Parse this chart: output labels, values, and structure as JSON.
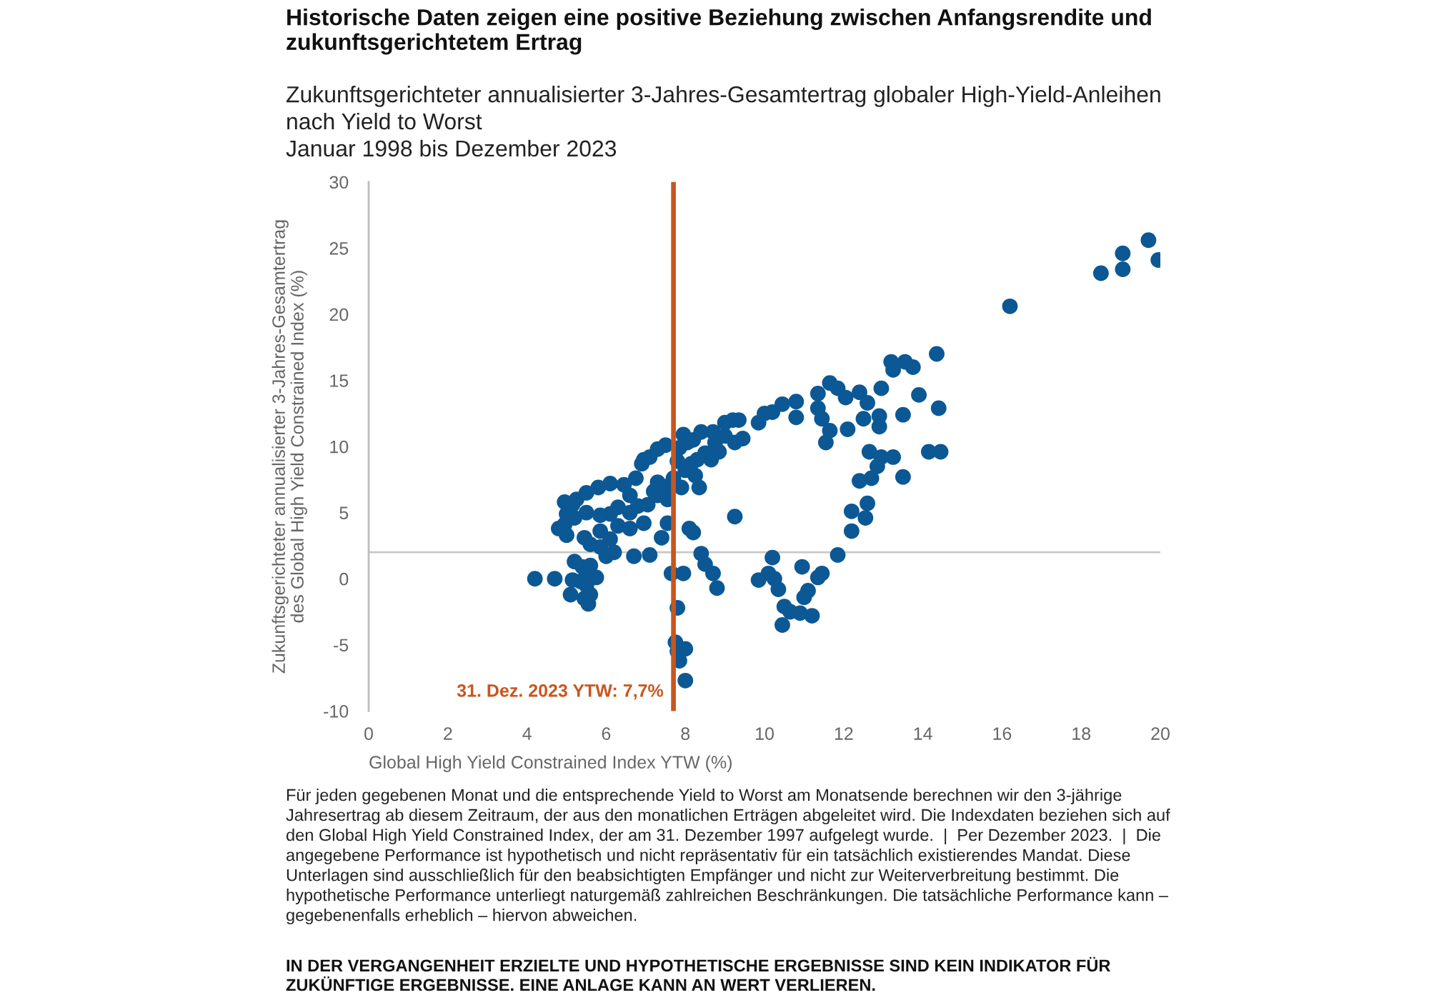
{
  "chart_data": {
    "type": "scatter",
    "title": "Historische Daten zeigen eine positive Beziehung zwischen Anfangsrendite und zukunftsgerichtetem Ertrag",
    "subtitle": "Zukunftsgerichteter annualisierter 3-Jahres-Gesamtertrag globaler High-Yield-Anleihen nach Yield to Worst\nJanuar 1998 bis Dezember 2023",
    "xlabel": "Global High Yield Constrained Index YTW (%)",
    "ylabel": "Zukunftsgerichteter annualisierter 3-Jahres-Gesamtertrag\ndes Global High Yield Constrained Index (%)",
    "x": [
      4.2,
      4.7,
      5.1,
      5.2,
      5.15,
      5.4,
      5.6,
      5.5,
      5.75,
      5.35,
      5.5,
      5.6,
      5.55,
      5.45,
      5.0,
      5.45,
      5.85,
      5.85,
      6.0,
      6.2,
      6.3,
      6.7,
      7.1,
      6.6,
      6.95,
      7.4,
      7.55,
      5.6,
      6.1,
      8.1,
      8.2,
      9.25,
      8.4,
      8.5,
      8.7,
      8.8,
      7.65,
      7.95,
      9.85,
      7.8,
      7.75,
      7.8,
      8.0,
      7.85,
      8.0,
      4.95,
      5.0,
      5.15,
      5.25,
      5.5,
      5.8,
      6.1,
      6.45,
      6.75,
      6.9,
      6.95,
      7.1,
      7.3,
      7.5,
      7.8,
      7.85,
      7.95,
      8.05,
      8.2,
      8.4,
      8.7,
      8.75,
      9.0,
      9.0,
      9.2,
      9.35,
      9.45,
      8.5,
      8.85,
      8.25,
      8.35,
      7.9,
      6.6,
      7.05,
      7.3,
      7.55,
      6.1,
      4.8,
      4.95,
      5.2,
      5.5,
      5.85,
      6.3,
      6.6,
      6.8,
      7.2,
      7.3,
      7.55,
      7.7,
      8.0,
      8.15,
      8.3,
      8.65,
      9.25,
      9.85,
      10.0,
      10.2,
      10.45,
      10.8,
      10.8,
      11.35,
      11.35,
      11.45,
      11.65,
      11.85,
      12.05,
      11.65,
      11.55,
      12.1,
      12.4,
      12.6,
      12.5,
      12.9,
      12.9,
      12.95,
      13.2,
      13.25,
      13.55,
      13.75,
      14.35,
      13.9,
      14.4,
      13.5,
      12.65,
      12.95,
      13.25,
      12.85,
      12.7,
      12.4,
      13.5,
      14.15,
      14.45,
      12.6,
      12.2,
      12.55,
      12.2,
      11.85,
      11.45,
      11.35,
      11.1,
      11.0,
      10.95,
      11.2,
      10.9,
      10.65,
      10.5,
      10.45,
      10.2,
      10.1,
      10.25,
      10.35,
      19.7,
      19.95,
      19.05,
      19.05,
      18.5,
      16.2
    ],
    "values": [
      0.0,
      0.0,
      -1.2,
      1.3,
      -0.1,
      0.9,
      1.0,
      0.3,
      0.1,
      -0.2,
      -0.5,
      -1.2,
      -1.9,
      -1.5,
      3.3,
      3.1,
      3.6,
      2.4,
      1.7,
      2.0,
      4.0,
      1.7,
      1.8,
      3.8,
      4.2,
      3.1,
      4.2,
      2.6,
      3.0,
      3.8,
      3.5,
      4.7,
      1.9,
      1.1,
      0.4,
      -0.7,
      0.4,
      0.4,
      -0.1,
      -2.2,
      -4.8,
      -5.5,
      -5.3,
      -6.2,
      -7.7,
      5.8,
      4.9,
      5.6,
      6.0,
      6.5,
      6.9,
      7.2,
      7.1,
      7.6,
      8.7,
      9.0,
      9.2,
      9.8,
      10.1,
      8.9,
      9.9,
      10.9,
      10.3,
      10.5,
      11.1,
      11.1,
      10.3,
      10.8,
      11.8,
      12.0,
      12.0,
      10.6,
      9.5,
      9.6,
      7.8,
      6.9,
      6.9,
      6.3,
      5.6,
      6.3,
      6.0,
      4.9,
      3.8,
      4.1,
      4.6,
      5.0,
      4.8,
      5.4,
      5.0,
      5.5,
      6.6,
      7.3,
      7.0,
      7.6,
      8.2,
      8.7,
      9.0,
      9.0,
      10.3,
      11.8,
      12.5,
      12.6,
      13.2,
      13.4,
      12.2,
      14.0,
      12.9,
      12.1,
      14.8,
      14.4,
      13.7,
      11.2,
      10.3,
      11.3,
      14.1,
      13.3,
      12.1,
      12.3,
      11.5,
      14.4,
      16.4,
      15.8,
      16.4,
      16.0,
      17.0,
      13.9,
      12.9,
      12.4,
      9.6,
      9.2,
      9.2,
      8.5,
      7.6,
      7.4,
      7.7,
      9.6,
      9.6,
      5.7,
      5.1,
      4.6,
      3.6,
      1.8,
      0.4,
      0.1,
      -0.9,
      -1.4,
      0.9,
      -2.8,
      -2.6,
      -2.5,
      -2.1,
      -3.5,
      1.6,
      0.4,
      0.0,
      -0.8,
      25.6,
      24.1,
      24.6,
      23.4,
      23.1,
      20.6
    ],
    "color": "#0b5895",
    "marker": "circle",
    "xlim": [
      0,
      20
    ],
    "ylim": [
      -10,
      30
    ],
    "xticks": [
      0,
      2,
      4,
      6,
      8,
      10,
      12,
      14,
      16,
      18,
      20
    ],
    "yticks": [
      -10,
      -5,
      0,
      5,
      10,
      15,
      20,
      25,
      30
    ],
    "ref_lines": [
      {
        "axis": "y",
        "value": 2,
        "color": "#c8c8c8"
      },
      {
        "axis": "x",
        "value": 7.7,
        "label": "31. Dez. 2023 YTW: 7,7%",
        "color": "#c8561e"
      }
    ],
    "annotations": [
      "Für jeden gegebenen Monat und die entsprechende Yield to Worst am Monatsende berechnen wir den 3-jährige Jahresertrag ab diesem Zeitraum, der aus den monatlichen Erträgen abgeleitet wird. Die Indexdaten beziehen sich auf den Global High Yield Constrained Index, der am 31. Dezember 1997 aufgelegt wurde.  |  Per Dezember 2023.  |  Die angegebene Performance ist hypothetisch und nicht repräsentativ für ein tatsächlich existierendes Mandat. Diese Unterlagen sind ausschließlich für den beabsichtigten Empfänger und nicht zur Weiterverbreitung bestimmt. Die hypothetische Performance unterliegt naturgemäß zahlreichen Beschränkungen. Die tatsächliche Performance kann – gegebenenfalls erheblich – hiervon abweichen.",
      "IN DER VERGANGENHEIT ERZIELTE UND HYPOTHETISCHE ERGEBNISSE SIND KEIN INDIKATOR FÜR ZUKÜNFTIGE ERGEBNISSE. EINE ANLAGE KANN AN WERT VERLIEREN."
    ]
  }
}
